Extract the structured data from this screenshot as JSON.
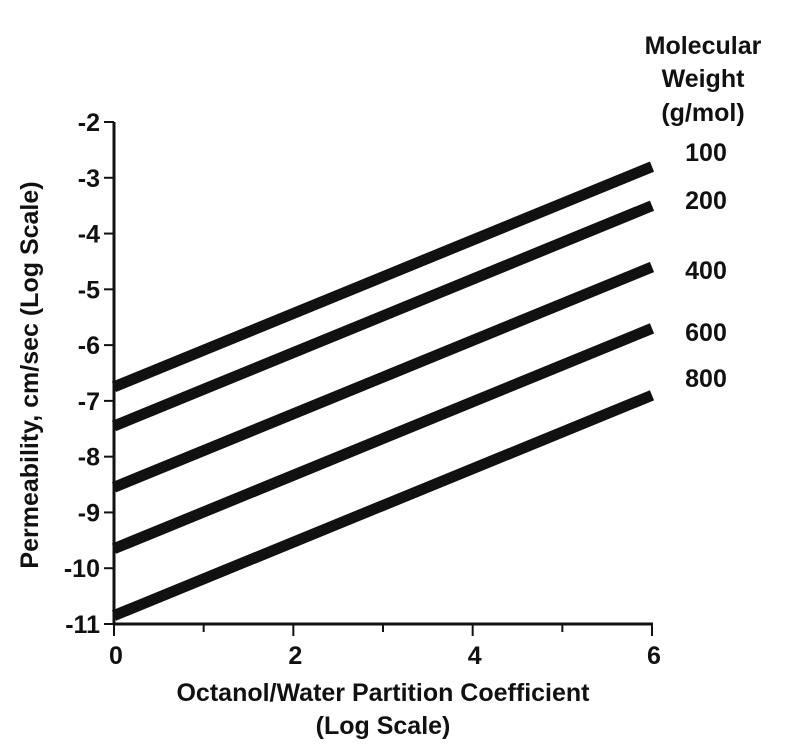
{
  "chart_data": {
    "type": "line",
    "xlabel_line1": "Octanol/Water Partition Coefficient",
    "xlabel_line2": "(Log Scale)",
    "ylabel": "Permeability, cm/sec (Log Scale)",
    "xlim": [
      0,
      6
    ],
    "ylim": [
      -11,
      -2
    ],
    "x_ticks": [
      0,
      2,
      4,
      6
    ],
    "y_ticks": [
      -2,
      -3,
      -4,
      -5,
      -6,
      -7,
      -8,
      -9,
      -10,
      -11
    ],
    "legend_title": [
      "Molecular",
      "Weight",
      "(g/mol)"
    ],
    "legend_placement": "top-right",
    "line_color": "#111111",
    "series": [
      {
        "name": "100",
        "x": [
          0,
          6
        ],
        "y": [
          -6.75,
          -2.8
        ]
      },
      {
        "name": "200",
        "x": [
          0,
          6
        ],
        "y": [
          -7.45,
          -3.5
        ]
      },
      {
        "name": "400",
        "x": [
          0,
          6
        ],
        "y": [
          -8.55,
          -4.6
        ]
      },
      {
        "name": "600",
        "x": [
          0,
          6
        ],
        "y": [
          -9.65,
          -5.7
        ]
      },
      {
        "name": "800",
        "x": [
          0,
          6
        ],
        "y": [
          -10.85,
          -6.9
        ]
      }
    ]
  }
}
